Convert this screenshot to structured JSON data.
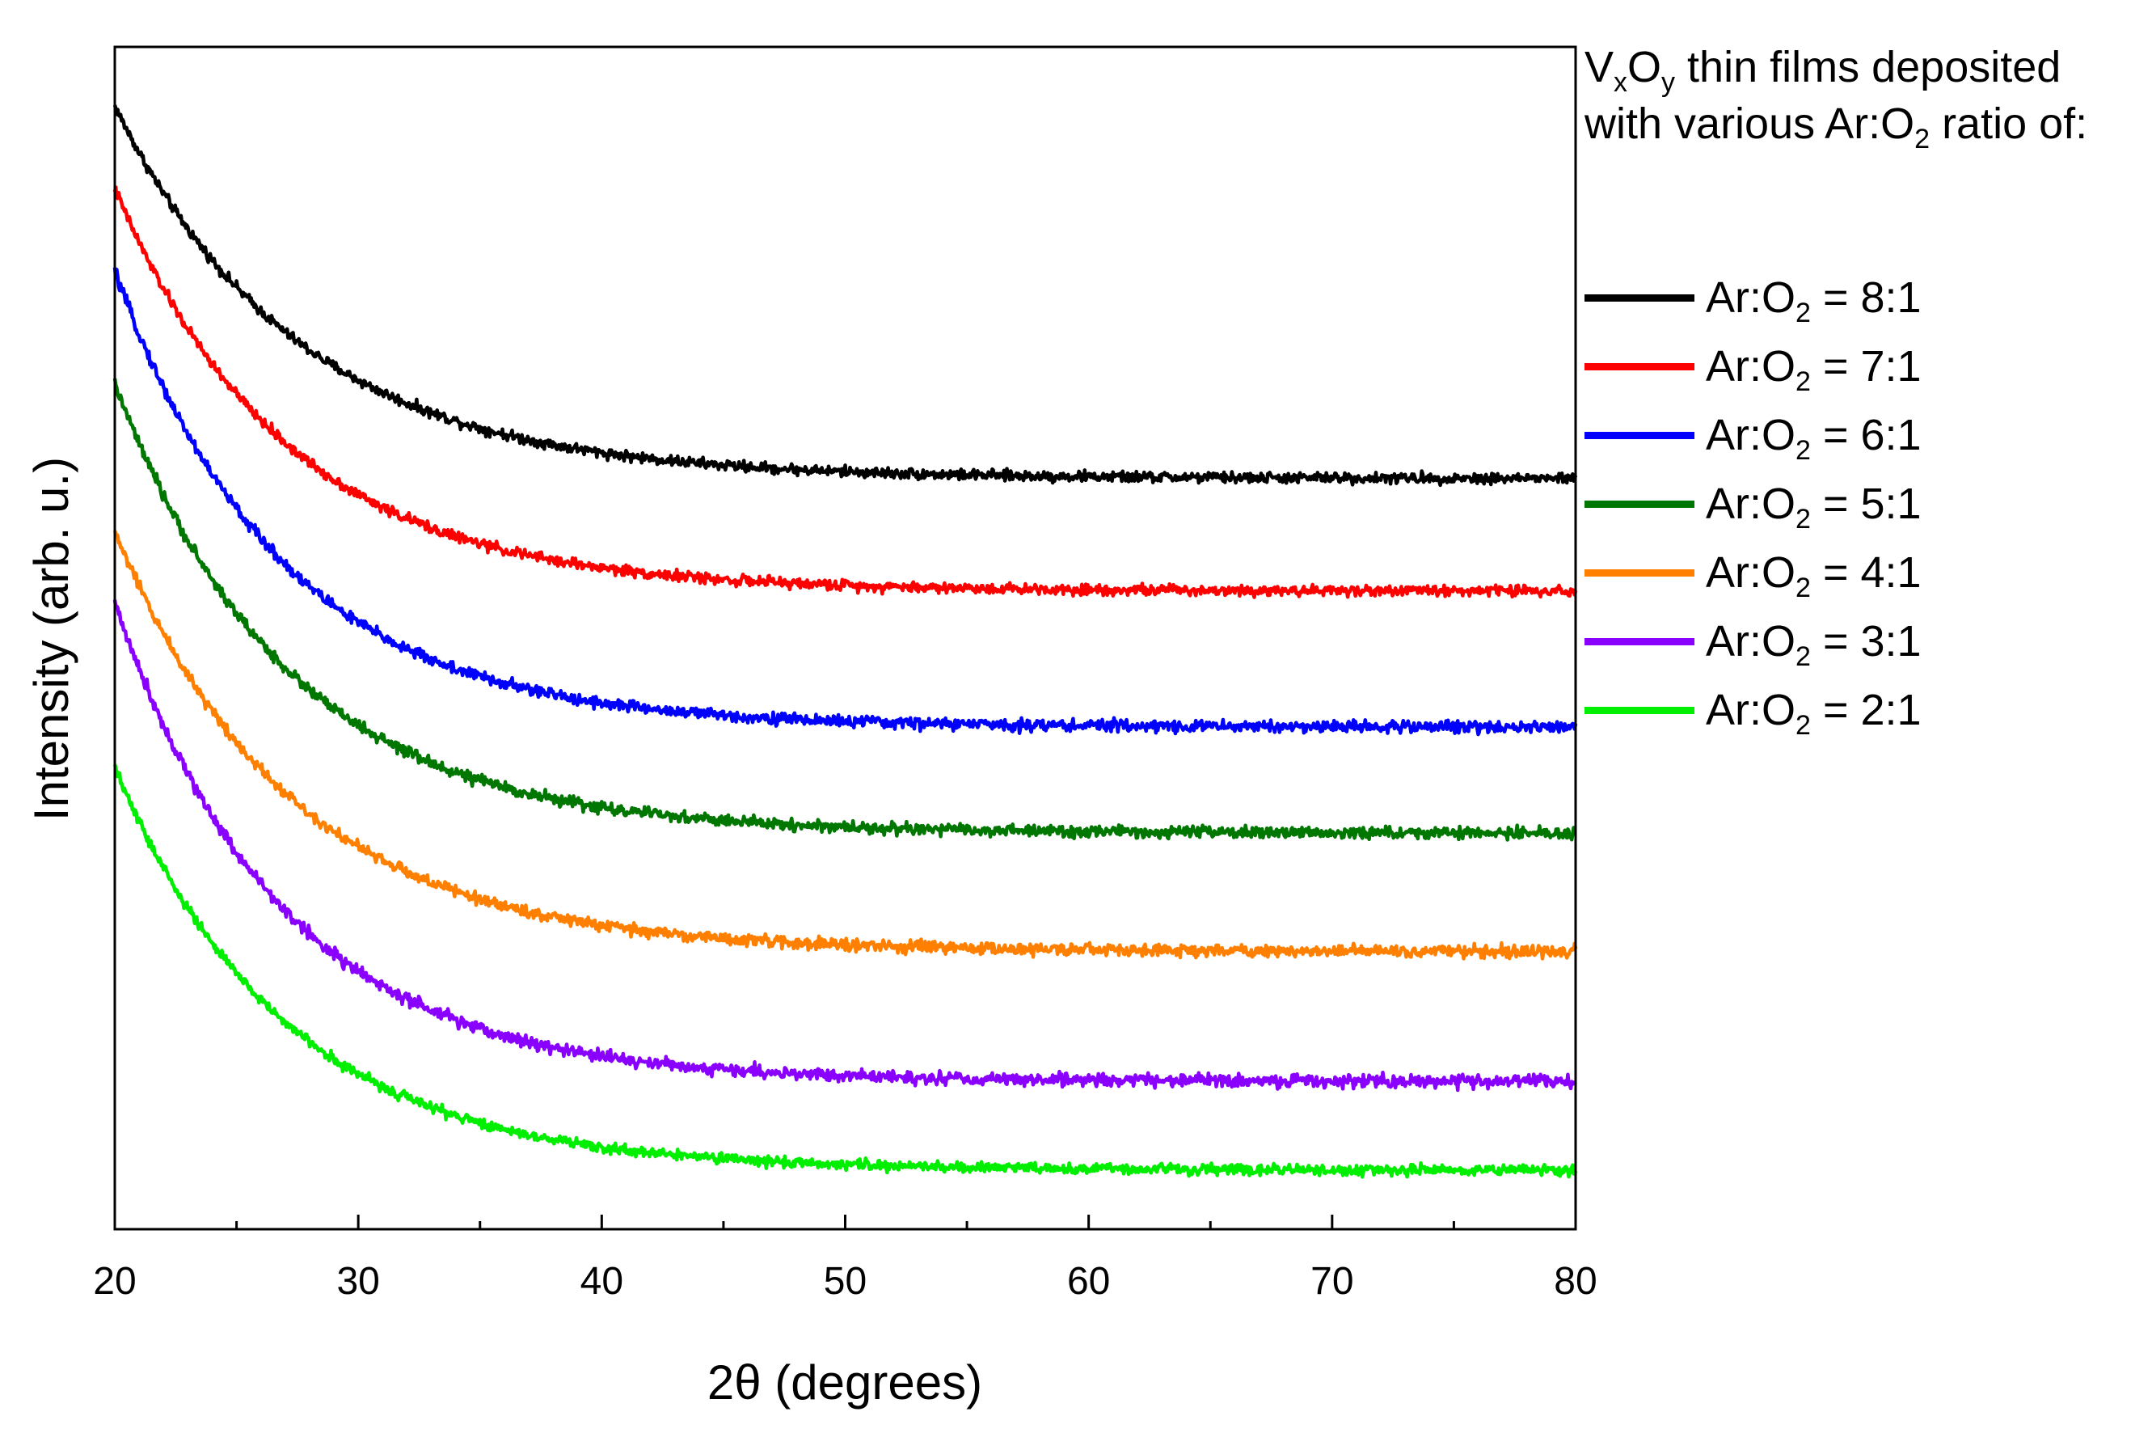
{
  "chart_data": {
    "type": "line",
    "title": "",
    "xlabel": "2θ (degrees)",
    "ylabel": "Intensity (arb. u.)",
    "xlim": [
      20,
      80
    ],
    "ylim": [
      0,
      100
    ],
    "xticks": [
      "20",
      "30",
      "40",
      "50",
      "60",
      "70",
      "80"
    ],
    "y_ticks_shown": false,
    "legend_position": "outside-top-right",
    "legend_title": {
      "line1_prefix": "V",
      "line1_sub1": "x",
      "line1_mid": "O",
      "line1_sub2": "y",
      "line1_suffix": " thin films deposited",
      "line2_prefix": "with various Ar:O",
      "line2_sub": "2",
      "line2_suffix": " ratio of:"
    },
    "series": [
      {
        "name": "Ar:O2 = 8:1",
        "label_prefix": "Ar:O",
        "label_sub": "2",
        "label_suffix": " = 8:1",
        "color": "#000000",
        "start": 95.0,
        "end": 63.5,
        "decay": 7.5,
        "noise": 0.45
      },
      {
        "name": "Ar:O2 = 7:1",
        "label_prefix": "Ar:O",
        "label_sub": "2",
        "label_suffix": " = 7:1",
        "color": "#ff0000",
        "start": 88.0,
        "end": 54.0,
        "decay": 7.0,
        "noise": 0.45
      },
      {
        "name": "Ar:O2 = 6:1",
        "label_prefix": "Ar:O",
        "label_sub": "2",
        "label_suffix": " = 6:1",
        "color": "#0000ff",
        "start": 81.0,
        "end": 42.5,
        "decay": 6.8,
        "noise": 0.5
      },
      {
        "name": "Ar:O2 = 5:1",
        "label_prefix": "Ar:O",
        "label_sub": "2",
        "label_suffix": " = 5:1",
        "color": "#007700",
        "start": 71.5,
        "end": 33.5,
        "decay": 7.0,
        "noise": 0.5
      },
      {
        "name": "Ar:O2 = 4:1",
        "label_prefix": "Ar:O",
        "label_sub": "2",
        "label_suffix": " = 4:1",
        "color": "#ff8000",
        "start": 59.0,
        "end": 23.5,
        "decay": 7.2,
        "noise": 0.5
      },
      {
        "name": "Ar:O2 = 3:1",
        "label_prefix": "Ar:O",
        "label_sub": "2",
        "label_suffix": " = 3:1",
        "color": "#8a00ff",
        "start": 53.0,
        "end": 12.5,
        "decay": 6.8,
        "noise": 0.55
      },
      {
        "name": "Ar:O2 = 2:1",
        "label_prefix": "Ar:O",
        "label_sub": "2",
        "label_suffix": " = 2:1",
        "color": "#00ee00",
        "start": 39.0,
        "end": 5.0,
        "decay": 7.0,
        "noise": 0.45
      }
    ]
  }
}
